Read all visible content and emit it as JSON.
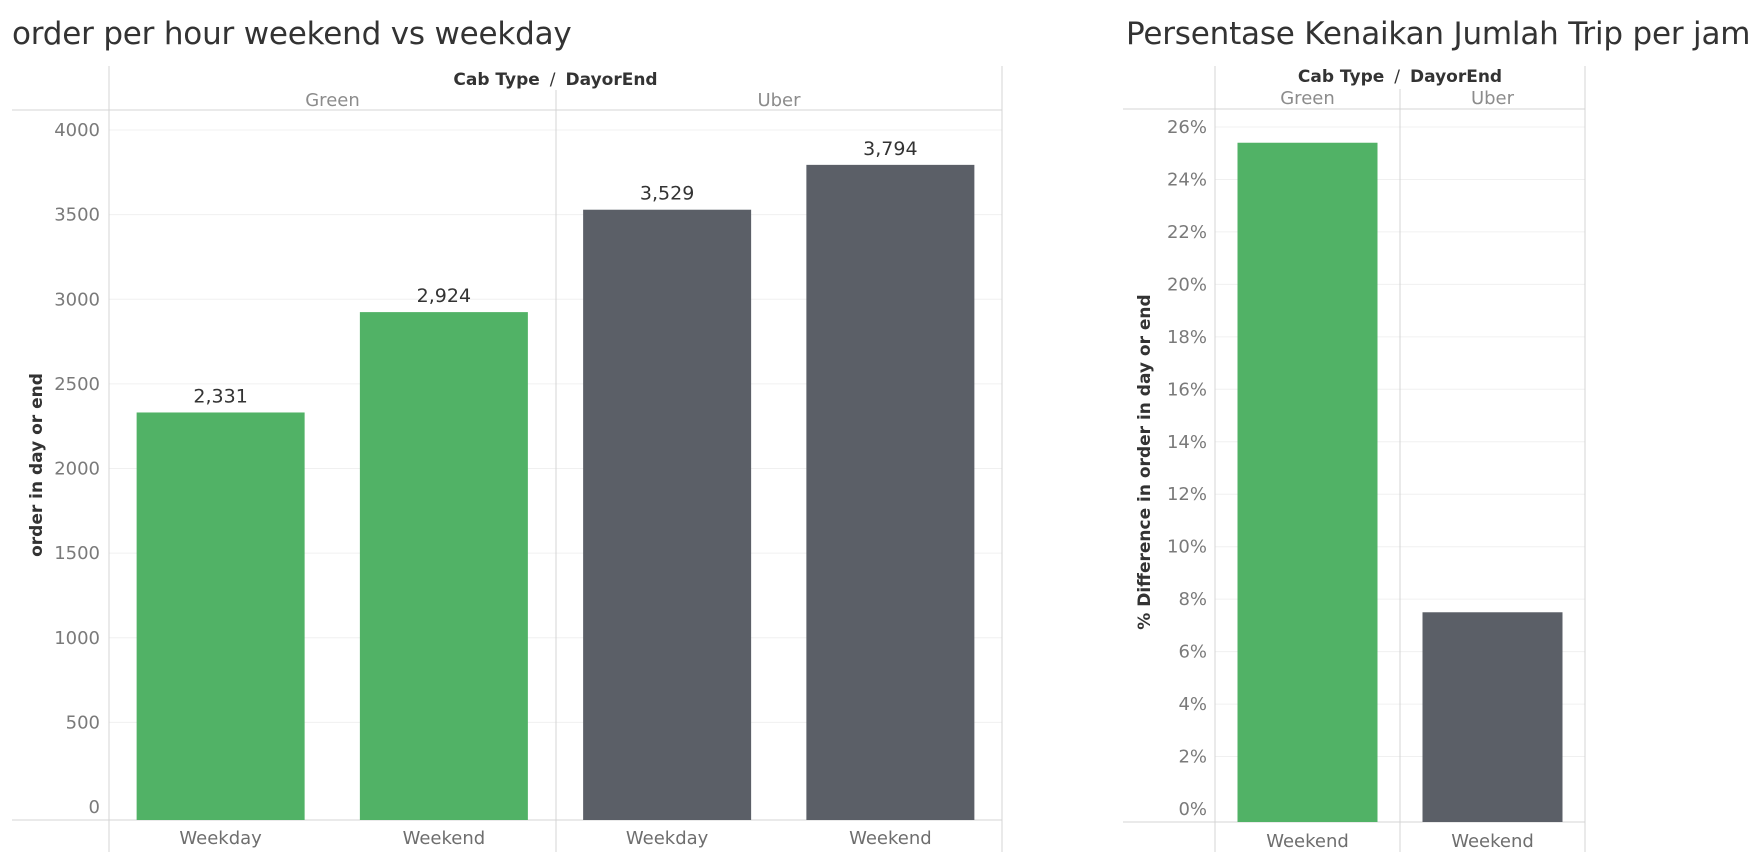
{
  "colors": {
    "green": "#51b266",
    "uber": "#5b5f67",
    "grid": "#f0f0f0",
    "divider": "#d4d4d4"
  },
  "chart_data": [
    {
      "type": "bar",
      "title": "order per hour weekend vs weekday",
      "header": {
        "field1": "Cab Type",
        "separator": "/",
        "field2": "DayorEnd"
      },
      "groups": [
        "Green",
        "Uber"
      ],
      "categories": [
        "Weekday",
        "Weekend",
        "Weekday",
        "Weekend"
      ],
      "bar_groups": [
        "Green",
        "Green",
        "Uber",
        "Uber"
      ],
      "values": [
        2331,
        2924,
        3529,
        3794
      ],
      "value_labels": [
        "2,331",
        "2,924",
        "3,529",
        "3,794"
      ],
      "ylabel": "order in day or end",
      "ylim": [
        0,
        4000
      ],
      "yticks": [
        0,
        500,
        1000,
        1500,
        2000,
        2500,
        3000,
        3500,
        4000
      ],
      "ytick_labels": [
        "0",
        "500",
        "1000",
        "1500",
        "2000",
        "2500",
        "3000",
        "3500",
        "4000"
      ],
      "grid": true
    },
    {
      "type": "bar",
      "title": "Persentase Kenaikan Jumlah Trip per jam",
      "header": {
        "field1": "Cab Type",
        "separator": "/",
        "field2": "DayorEnd"
      },
      "groups": [
        "Green",
        "Uber"
      ],
      "categories": [
        "Weekend",
        "Weekend"
      ],
      "bar_groups": [
        "Green",
        "Uber"
      ],
      "values": [
        25.4,
        7.5
      ],
      "ylabel": "% Difference in order in day or end",
      "ylim": [
        0,
        26
      ],
      "yticks": [
        0,
        2,
        4,
        6,
        8,
        10,
        12,
        14,
        16,
        18,
        20,
        22,
        24,
        26
      ],
      "ytick_labels": [
        "0%",
        "2%",
        "4%",
        "6%",
        "8%",
        "10%",
        "12%",
        "14%",
        "16%",
        "18%",
        "20%",
        "22%",
        "24%",
        "26%"
      ],
      "grid": true
    }
  ]
}
